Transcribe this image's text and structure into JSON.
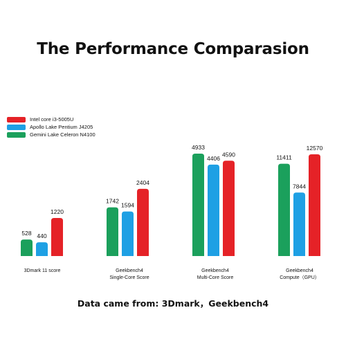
{
  "title": "The Performance Comparasion",
  "footer": "Data came from: 3Dmark，Geekbench4",
  "chart_data": {
    "type": "bar",
    "title": "The Performance Comparasion",
    "legend_position": "top-left",
    "series": [
      {
        "name": "Intel core i3-5005U",
        "color": "#e52227",
        "values": [
          1220,
          2404,
          4590,
          12570
        ],
        "labels": [
          "1220",
          "2404",
          "4590",
          "12570"
        ]
      },
      {
        "name": "Apollo Lake Pentium J4205",
        "color": "#1ea0e4",
        "values": [
          440,
          1594,
          4406,
          7844
        ],
        "labels": [
          "440",
          "1594",
          "4406",
          "7844"
        ]
      },
      {
        "name": "Gemini Lake Celeron N4100",
        "color": "#1ba05c",
        "values": [
          528,
          1742,
          4933,
          11411
        ],
        "labels": [
          "528",
          "1742",
          "4933",
          "11411"
        ]
      }
    ],
    "groups": [
      {
        "label": [
          "3Dmark 11 score"
        ],
        "bar_order": [
          2,
          1,
          0
        ]
      },
      {
        "label": [
          "Geekbench4",
          "Single-Core Score"
        ],
        "bar_order": [
          2,
          1,
          0
        ]
      },
      {
        "label": [
          "Geekbench4",
          "Multi-Core Score"
        ],
        "bar_order": [
          2,
          1,
          0
        ]
      },
      {
        "label": [
          "Geekbench4",
          "Compute（GPU）"
        ],
        "bar_order": [
          2,
          1,
          0
        ]
      }
    ]
  }
}
